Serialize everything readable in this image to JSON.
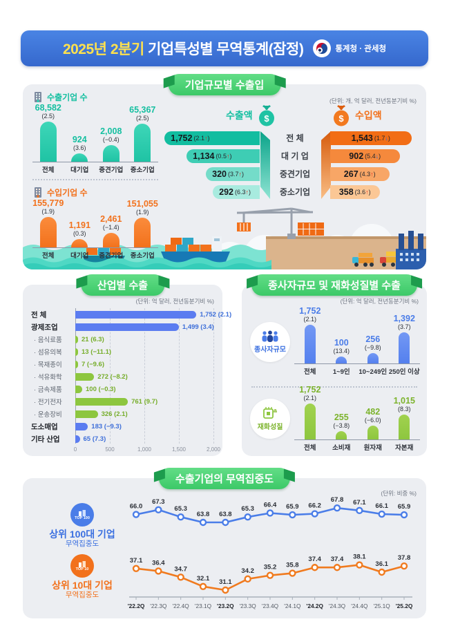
{
  "header": {
    "title_highlight": "2025년 2분기",
    "title_rest": " 기업특성별 무역통계(잠정)",
    "agency": "통계청 · 관세청"
  },
  "size_panel": {
    "badge": "기업규모별 수출입",
    "unit_note": "(단위: 개, 억 달러, 전년동분기비 %)",
    "export_count_label": "수출기업 수",
    "import_count_label": "수입기업 수",
    "export_value_label": "수출액",
    "import_value_label": "수입액"
  },
  "industry_panel": {
    "badge": "산업별 수출",
    "unit_note": "(단위: 억 달러, 전년동분기비 %)"
  },
  "worker_goods_panel": {
    "badge": "종사자규모 및 재화성질별 수출",
    "unit_note": "(단위: 억 달러, 전년동분기비 %)",
    "worker_label": "종사자규모",
    "goods_label": "재화성질"
  },
  "concentration_panel": {
    "badge": "수출기업의 무역집중도",
    "unit_note": "(단위: 비중 %)",
    "legend": [
      {
        "badge": "TOP 100",
        "line1": "상위 100대 기업",
        "line2": "무역집중도"
      },
      {
        "badge": "TOP 10",
        "line1": "상위 10대 기업",
        "line2": "무역집중도"
      }
    ]
  },
  "colors": {
    "header_blue": "#3b74d8",
    "badge_green": "#4fd376",
    "title_yellow": "#ffe14d",
    "teal": "#1fc3a4",
    "orange": "#f2711c",
    "blue_bar": "#5b7cf0",
    "green_bar": "#8dc63f",
    "line_blue": "#4a7de8",
    "line_orange": "#f07a1e",
    "arrow_up_red": "#e33225",
    "arrow_down_blue": "#2b6fdb"
  },
  "chart_data": [
    {
      "id": "export_companies",
      "type": "bar",
      "title": "수출기업 수",
      "categories": [
        "전체",
        "대기업",
        "중견기업",
        "중소기업"
      ],
      "values": [
        68582,
        924,
        2008,
        65367
      ],
      "value_labels": [
        "68,582",
        "924",
        "2,008",
        "65,367"
      ],
      "changes": [
        "(2.5)",
        "(3.6)",
        "(−0.4)",
        "(2.5)"
      ],
      "bar_scale": [
        1,
        0.2,
        0.42,
        0.94
      ]
    },
    {
      "id": "import_companies",
      "type": "bar",
      "title": "수입기업 수",
      "categories": [
        "전체",
        "대기업",
        "중견기업",
        "중소기업"
      ],
      "values": [
        155779,
        1191,
        2461,
        151055
      ],
      "value_labels": [
        "155,779",
        "1,191",
        "2,461",
        "151,055"
      ],
      "changes": [
        "(1.9)",
        "(0.3)",
        "(−1.4)",
        "(1.9)"
      ],
      "bar_scale": [
        1,
        0.28,
        0.47,
        0.97
      ]
    },
    {
      "id": "trade_value_by_size",
      "type": "bar",
      "categories": [
        "전  체",
        "대 기 업",
        "중견기업",
        "중소기업"
      ],
      "series": [
        {
          "name": "수출액",
          "values": [
            1752,
            1134,
            320,
            292
          ],
          "value_labels": [
            "1,752",
            "1,134",
            "320",
            "292"
          ],
          "changes": [
            "2.1",
            "0.5",
            "3.7",
            "6.3"
          ],
          "directions": [
            "up",
            "up",
            "up",
            "up"
          ]
        },
        {
          "name": "수입액",
          "values": [
            1543,
            902,
            267,
            358
          ],
          "value_labels": [
            "1,543",
            "902",
            "267",
            "358"
          ],
          "changes": [
            "1.7",
            "5.4",
            "4.3",
            "3.6"
          ],
          "directions": [
            "down",
            "down",
            "up",
            "up"
          ]
        }
      ]
    },
    {
      "id": "industry_exports",
      "type": "bar",
      "title": "산업별 수출",
      "xlim": [
        0,
        2000
      ],
      "x_ticks": [
        "0",
        "500",
        "1,000",
        "1,500",
        "2,000"
      ],
      "rows": [
        {
          "label": "전  체",
          "value": 1752,
          "value_label": "1,752",
          "change": "(2.1)",
          "group": "total"
        },
        {
          "label": "광제조업",
          "value": 1499,
          "value_label": "1,499",
          "change": "(3.4)",
          "group": "total"
        },
        {
          "label": "음식료품",
          "value": 21,
          "value_label": "21",
          "change": "(6.3)",
          "group": "sub"
        },
        {
          "label": "섬유의복",
          "value": 13,
          "value_label": "13",
          "change": "(−11.1)",
          "group": "sub"
        },
        {
          "label": "목재종이",
          "value": 7,
          "value_label": "7",
          "change": "(−9.6)",
          "group": "sub"
        },
        {
          "label": "석유화학",
          "value": 272,
          "value_label": "272",
          "change": "(−8.2)",
          "group": "sub"
        },
        {
          "label": "금속제품",
          "value": 100,
          "value_label": "100",
          "change": "(−0.3)",
          "group": "sub"
        },
        {
          "label": "전기전자",
          "value": 761,
          "value_label": "761",
          "change": "(9.7)",
          "group": "sub"
        },
        {
          "label": "운송장비",
          "value": 326,
          "value_label": "326",
          "change": "(2.1)",
          "group": "sub"
        },
        {
          "label": "도소매업",
          "value": 183,
          "value_label": "183",
          "change": "(−9.3)",
          "group": "total"
        },
        {
          "label": "기타 산업",
          "value": 65,
          "value_label": "65",
          "change": "(7.3)",
          "group": "total"
        }
      ]
    },
    {
      "id": "worker_size",
      "type": "bar",
      "title": "종사자규모",
      "categories": [
        "전체",
        "1~9인",
        "10~249인",
        "250인 이상"
      ],
      "values": [
        1752,
        100,
        256,
        1392
      ],
      "value_labels": [
        "1,752",
        "100",
        "256",
        "1,392"
      ],
      "changes": [
        "(2.1)",
        "(13.4)",
        "(−9.8)",
        "(3.7)"
      ],
      "bar_scale": [
        1,
        0.17,
        0.27,
        0.8
      ]
    },
    {
      "id": "goods_nature",
      "type": "bar",
      "title": "재화성질",
      "categories": [
        "전체",
        "소비재",
        "원자재",
        "자본재"
      ],
      "values": [
        1752,
        255,
        482,
        1015
      ],
      "value_labels": [
        "1,752",
        "255",
        "482",
        "1,015"
      ],
      "changes": [
        "(2.1)",
        "(−3.8)",
        "(−6.0)",
        "(8.3)"
      ],
      "bar_scale": [
        1,
        0.23,
        0.38,
        0.7
      ]
    },
    {
      "id": "trade_concentration",
      "type": "line",
      "title": "수출기업의 무역집중도",
      "unit": "비중 %",
      "categories": [
        "'22.2Q",
        "'22.3Q",
        "'22.4Q",
        "'23.1Q",
        "'23.2Q",
        "'23.3Q",
        "'23.4Q",
        "'24.1Q",
        "'24.2Q",
        "'24.3Q",
        "'24.4Q",
        "'25.1Q",
        "'25.2Q"
      ],
      "series": [
        {
          "name": "상위 100대 기업 무역집중도",
          "values": [
            66.0,
            67.3,
            65.3,
            63.8,
            63.8,
            65.3,
            66.4,
            65.9,
            66.2,
            67.8,
            67.1,
            66.1,
            65.9
          ],
          "value_labels": [
            "66.0",
            "67.3",
            "65.3",
            "63.8",
            "63.8",
            "65.3",
            "66.4",
            "65.9",
            "66.2",
            "67.8",
            "67.1",
            "66.1",
            "65.9"
          ]
        },
        {
          "name": "상위 10대 기업 무역집중도",
          "values": [
            37.1,
            36.4,
            34.7,
            32.1,
            31.1,
            34.2,
            35.2,
            35.8,
            37.4,
            37.4,
            38.1,
            36.1,
            37.8
          ],
          "value_labels": [
            "37.1",
            "36.4",
            "34.7",
            "32.1",
            "31.1",
            "34.2",
            "35.2",
            "35.8",
            "37.4",
            "37.4",
            "38.1",
            "36.1",
            "37.8"
          ]
        }
      ]
    }
  ]
}
